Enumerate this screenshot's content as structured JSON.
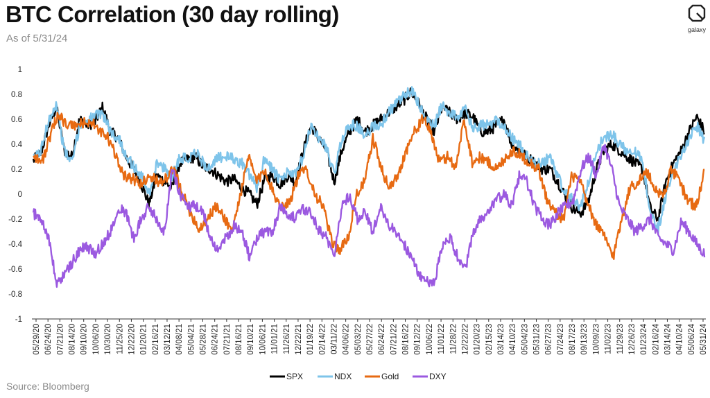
{
  "header": {
    "title": "BTC Correlation (30 day rolling)",
    "subtitle": "As of 5/31/24"
  },
  "footer": {
    "source": "Source: Bloomberg"
  },
  "logo": {
    "icon": "galaxy-logo-icon",
    "text": "galaxy"
  },
  "chart_data": {
    "type": "line",
    "title": "BTC Correlation (30 day rolling)",
    "subtitle": "As of 5/31/24",
    "xlabel": "",
    "ylabel": "",
    "ylim": [
      -1,
      1
    ],
    "yticks": [
      1,
      0.8,
      0.6,
      0.4,
      0.2,
      0,
      -0.2,
      -0.4,
      -0.6,
      -0.8,
      -1
    ],
    "ytick_labels": [
      "1",
      "0.8",
      "0.6",
      "0.4",
      "0.2",
      "0",
      "-0.2",
      "-0.4",
      "-0.6",
      "-0.8",
      "-1"
    ],
    "x_range": [
      "05/29/20",
      "05/31/24"
    ],
    "xtick_labels": [
      "05/29/20",
      "06/24/20",
      "07/21/20",
      "08/14/20",
      "09/10/20",
      "10/06/20",
      "10/30/20",
      "11/25/20",
      "12/22/20",
      "01/20/21",
      "02/16/21",
      "03/12/21",
      "04/08/21",
      "05/04/21",
      "05/28/21",
      "06/24/21",
      "07/21/21",
      "08/16/21",
      "09/10/21",
      "10/06/21",
      "11/01/21",
      "11/26/21",
      "12/22/21",
      "01/19/22",
      "02/14/22",
      "03/11/22",
      "04/06/22",
      "05/03/22",
      "05/27/22",
      "06/24/22",
      "07/21/22",
      "08/16/22",
      "09/12/22",
      "10/06/22",
      "11/01/22",
      "11/28/22",
      "12/22/22",
      "01/20/23",
      "02/15/23",
      "03/14/23",
      "04/10/23",
      "05/04/23",
      "05/31/23",
      "06/27/23",
      "07/24/23",
      "08/17/23",
      "09/13/23",
      "10/09/23",
      "11/02/23",
      "11/29/23",
      "12/26/23",
      "01/23/24",
      "02/16/24",
      "03/14/24",
      "04/10/24",
      "05/06/24",
      "05/31/24"
    ],
    "grid": false,
    "legend_position": "bottom-center",
    "series": [
      {
        "name": "SPX",
        "color": "#000000",
        "values": [
          0.27,
          0.33,
          0.55,
          0.7,
          0.35,
          0.3,
          0.6,
          0.55,
          0.58,
          0.7,
          0.5,
          0.45,
          0.3,
          0.2,
          0.08,
          -0.08,
          0.15,
          0.1,
          0.05,
          0.25,
          0.28,
          0.3,
          0.22,
          0.2,
          0.15,
          0.1,
          0.12,
          0.05,
          0.0,
          -0.08,
          0.12,
          0.15,
          0.08,
          0.15,
          0.1,
          0.35,
          0.55,
          0.45,
          0.35,
          0.1,
          0.35,
          0.5,
          0.6,
          0.5,
          0.55,
          0.6,
          0.65,
          0.7,
          0.75,
          0.82,
          0.72,
          0.6,
          0.5,
          0.7,
          0.65,
          0.6,
          0.65,
          0.62,
          0.5,
          0.5,
          0.55,
          0.6,
          0.4,
          0.35,
          0.3,
          0.25,
          0.2,
          0.2,
          0.1,
          -0.02,
          -0.12,
          -0.15,
          -0.05,
          0.2,
          0.35,
          0.4,
          0.35,
          0.3,
          0.25,
          0.2,
          -0.12,
          -0.2,
          0.1,
          0.25,
          0.35,
          0.5,
          0.62,
          0.5
        ]
      },
      {
        "name": "NDX",
        "color": "#7ec4ea",
        "values": [
          0.28,
          0.35,
          0.6,
          0.72,
          0.35,
          0.25,
          0.55,
          0.6,
          0.62,
          0.65,
          0.5,
          0.45,
          0.32,
          0.22,
          0.15,
          0.0,
          0.25,
          0.2,
          0.15,
          0.3,
          0.28,
          0.35,
          0.25,
          0.2,
          0.3,
          0.3,
          0.28,
          0.25,
          0.15,
          0.05,
          0.3,
          0.2,
          0.1,
          0.18,
          0.15,
          0.3,
          0.55,
          0.45,
          0.38,
          0.15,
          0.45,
          0.55,
          0.55,
          0.45,
          0.55,
          0.55,
          0.65,
          0.72,
          0.78,
          0.83,
          0.72,
          0.58,
          0.55,
          0.72,
          0.65,
          0.62,
          0.68,
          0.52,
          0.55,
          0.55,
          0.6,
          0.55,
          0.45,
          0.4,
          0.3,
          0.25,
          0.25,
          0.3,
          0.15,
          0.0,
          -0.05,
          -0.1,
          0.1,
          0.35,
          0.45,
          0.48,
          0.4,
          0.35,
          0.35,
          0.25,
          -0.15,
          -0.28,
          0.0,
          0.2,
          0.3,
          0.45,
          0.55,
          0.42
        ]
      },
      {
        "name": "Gold",
        "color": "#e76a12",
        "values": [
          0.32,
          0.25,
          0.45,
          0.65,
          0.55,
          0.55,
          0.57,
          0.58,
          0.5,
          0.45,
          0.3,
          0.15,
          0.12,
          0.08,
          0.15,
          0.1,
          0.12,
          0.2,
          0.0,
          -0.15,
          -0.28,
          -0.2,
          -0.1,
          -0.18,
          -0.3,
          0.0,
          0.3,
          0.1,
          0.2,
          0.0,
          -0.1,
          -0.05,
          0.15,
          0.2,
          0.0,
          -0.1,
          -0.38,
          -0.45,
          -0.35,
          0.0,
          0.1,
          0.45,
          0.2,
          0.05,
          0.15,
          0.35,
          0.5,
          0.6,
          0.5,
          0.25,
          0.3,
          0.22,
          0.6,
          0.25,
          0.3,
          0.25,
          0.2,
          0.3,
          0.35,
          0.3,
          0.25,
          0.2,
          -0.05,
          -0.15,
          -0.2,
          0.15,
          0.1,
          -0.1,
          -0.25,
          -0.35,
          -0.5,
          -0.2,
          0.05,
          0.1,
          0.18,
          0.05,
          -0.02,
          0.2,
          0.1,
          -0.05,
          -0.1,
          0.18
        ]
      },
      {
        "name": "DXY",
        "color": "#9b59e0",
        "values": [
          -0.15,
          -0.2,
          -0.35,
          -0.72,
          -0.65,
          -0.55,
          -0.45,
          -0.42,
          -0.48,
          -0.4,
          -0.3,
          -0.1,
          -0.15,
          -0.35,
          -0.2,
          -0.1,
          -0.2,
          -0.3,
          0.2,
          0.0,
          -0.1,
          -0.1,
          -0.15,
          -0.35,
          -0.45,
          -0.35,
          -0.25,
          -0.3,
          -0.5,
          -0.35,
          -0.3,
          -0.3,
          -0.1,
          -0.15,
          -0.2,
          -0.12,
          -0.15,
          -0.28,
          -0.35,
          -0.48,
          -0.1,
          0.0,
          -0.2,
          -0.15,
          -0.3,
          -0.1,
          -0.25,
          -0.3,
          -0.4,
          -0.5,
          -0.65,
          -0.7,
          -0.72,
          -0.4,
          -0.35,
          -0.5,
          -0.6,
          -0.3,
          -0.2,
          -0.15,
          -0.05,
          0.0,
          -0.1,
          0.15,
          0.1,
          -0.1,
          -0.2,
          -0.25,
          -0.15,
          -0.1,
          -0.05,
          0.2,
          0.3,
          0.15,
          0.4,
          0.2,
          -0.1,
          -0.2,
          -0.3,
          -0.25,
          -0.2,
          -0.35,
          -0.4,
          -0.45,
          -0.22,
          -0.3,
          -0.4,
          -0.48
        ]
      }
    ]
  }
}
